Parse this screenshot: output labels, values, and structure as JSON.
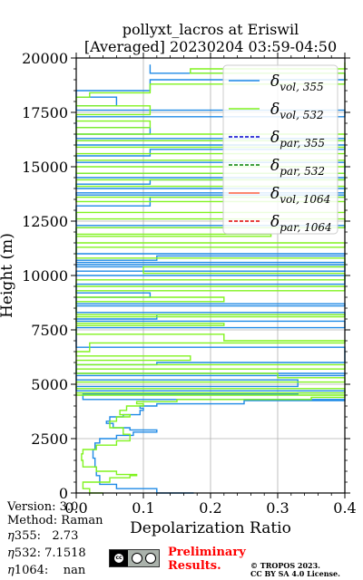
{
  "header": {
    "title_line1": "pollyxt_lacros at Eriswil",
    "title_line2": "[Averaged] 20230204 03:59-04:50"
  },
  "chart_data": {
    "type": "line",
    "title": "pollyxt_lacros at Eriswil\n[Averaged] 20230204 03:59-04:50",
    "xlabel": "Depolarization Ratio",
    "ylabel": "Height (m)",
    "xlim": [
      0.0,
      0.4
    ],
    "ylim": [
      0,
      20000
    ],
    "xticks": [
      "0.0",
      "0.1",
      "0.2",
      "0.3",
      "0.4"
    ],
    "yticks": [
      "0",
      "2500",
      "5000",
      "7500",
      "10000",
      "12500",
      "15000",
      "17500",
      "20000"
    ],
    "grid": true,
    "legend_position": "top-right",
    "series": [
      {
        "name": "δvol,355",
        "color": "#1f8ae6",
        "points": [
          [
            0.175,
            0
          ],
          [
            0.12,
            200
          ],
          [
            0.06,
            400
          ],
          [
            0.035,
            800
          ],
          [
            0.03,
            1200
          ],
          [
            0.028,
            1600
          ],
          [
            0.025,
            2000
          ],
          [
            0.028,
            2300
          ],
          [
            0.035,
            2500
          ],
          [
            0.06,
            2650
          ],
          [
            0.085,
            2800
          ],
          [
            0.12,
            2900
          ],
          [
            0.08,
            3000
          ],
          [
            0.055,
            3200
          ],
          [
            0.045,
            3300
          ],
          [
            0.05,
            3500
          ],
          [
            0.07,
            3600
          ],
          [
            0.095,
            3800
          ],
          [
            0.1,
            3900
          ],
          [
            0.095,
            4000
          ],
          [
            0.12,
            4100
          ],
          [
            0.25,
            4250
          ],
          [
            0.4,
            4300
          ],
          [
            0.01,
            4550
          ],
          [
            0.33,
            4600
          ],
          [
            0.4,
            4700
          ],
          [
            0.0,
            4900
          ],
          [
            0.33,
            5000
          ],
          [
            0.33,
            5200
          ],
          [
            0.0,
            5400
          ],
          [
            0.4,
            5500
          ],
          [
            0.0,
            5900
          ],
          [
            0.12,
            6000
          ],
          [
            0.4,
            6700
          ],
          [
            0.0,
            7600
          ],
          [
            0.4,
            7900
          ],
          [
            0.0,
            8000
          ],
          [
            0.12,
            8200
          ],
          [
            0.4,
            8300
          ],
          [
            0.0,
            8600
          ],
          [
            0.4,
            8700
          ],
          [
            0.0,
            9000
          ],
          [
            0.11,
            9200
          ],
          [
            0.0,
            9600
          ],
          [
            0.4,
            10000
          ],
          [
            0.0,
            10200
          ],
          [
            0.4,
            10400
          ],
          [
            0.0,
            10500
          ],
          [
            0.4,
            10600
          ],
          [
            0.0,
            10700
          ],
          [
            0.12,
            10900
          ],
          [
            0.4,
            11000
          ],
          [
            0.0,
            12200
          ],
          [
            0.4,
            12300
          ],
          [
            0.0,
            13200
          ],
          [
            0.11,
            13600
          ],
          [
            0.4,
            13700
          ],
          [
            0.0,
            13800
          ],
          [
            0.4,
            14000
          ],
          [
            0.0,
            14200
          ],
          [
            0.11,
            14400
          ],
          [
            0.4,
            14500
          ],
          [
            0.0,
            14700
          ],
          [
            0.4,
            15200
          ],
          [
            0.0,
            15500
          ],
          [
            0.11,
            15800
          ],
          [
            0.4,
            16000
          ],
          [
            0.0,
            16200
          ],
          [
            0.4,
            16300
          ],
          [
            0.0,
            16500
          ],
          [
            0.11,
            16800
          ],
          [
            0.0,
            17300
          ],
          [
            0.4,
            17600
          ],
          [
            0.0,
            17800
          ],
          [
            0.06,
            18200
          ],
          [
            0.0,
            18500
          ],
          [
            0.11,
            19000
          ],
          [
            0.4,
            19300
          ],
          [
            0.11,
            19700
          ]
        ]
      },
      {
        "name": "δvol,532",
        "color": "#80f31f",
        "points": [
          [
            0.04,
            0
          ],
          [
            0.02,
            200
          ],
          [
            0.01,
            500
          ],
          [
            0.05,
            700
          ],
          [
            0.08,
            800
          ],
          [
            0.09,
            850
          ],
          [
            0.06,
            1000
          ],
          [
            0.03,
            1200
          ],
          [
            0.01,
            1500
          ],
          [
            0.008,
            1800
          ],
          [
            0.01,
            2000
          ],
          [
            0.03,
            2200
          ],
          [
            0.06,
            2400
          ],
          [
            0.08,
            2700
          ],
          [
            0.07,
            3000
          ],
          [
            0.05,
            3300
          ],
          [
            0.06,
            3500
          ],
          [
            0.08,
            3600
          ],
          [
            0.065,
            3800
          ],
          [
            0.075,
            4000
          ],
          [
            0.1,
            4100
          ],
          [
            0.09,
            4200
          ],
          [
            0.15,
            4300
          ],
          [
            0.35,
            4400
          ],
          [
            0.4,
            4500
          ],
          [
            0.0,
            4600
          ],
          [
            0.4,
            4800
          ],
          [
            0.0,
            5100
          ],
          [
            0.4,
            5300
          ],
          [
            0.3,
            5500
          ],
          [
            0.0,
            5700
          ],
          [
            0.4,
            5900
          ],
          [
            0.0,
            6100
          ],
          [
            0.17,
            6300
          ],
          [
            0.0,
            6500
          ],
          [
            0.02,
            6900
          ],
          [
            0.4,
            7000
          ],
          [
            0.22,
            7300
          ],
          [
            0.0,
            7700
          ],
          [
            0.22,
            7800
          ],
          [
            0.0,
            8100
          ],
          [
            0.4,
            8200
          ],
          [
            0.0,
            8800
          ],
          [
            0.22,
            9000
          ],
          [
            0.0,
            9300
          ],
          [
            0.4,
            9500
          ],
          [
            0.0,
            9800
          ],
          [
            0.4,
            10100
          ],
          [
            0.1,
            10400
          ],
          [
            0.4,
            10800
          ],
          [
            0.0,
            11300
          ],
          [
            0.4,
            11500
          ],
          [
            0.0,
            11800
          ],
          [
            0.29,
            11900
          ],
          [
            0.0,
            12200
          ],
          [
            0.4,
            12600
          ],
          [
            0.0,
            12900
          ],
          [
            0.4,
            13400
          ],
          [
            0.0,
            13600
          ],
          [
            0.4,
            14100
          ],
          [
            0.0,
            14400
          ],
          [
            0.4,
            14700
          ],
          [
            0.0,
            15000
          ],
          [
            0.4,
            15300
          ],
          [
            0.0,
            15600
          ],
          [
            0.4,
            15900
          ],
          [
            0.0,
            16200
          ],
          [
            0.4,
            16500
          ],
          [
            0.0,
            16800
          ],
          [
            0.11,
            17100
          ],
          [
            0.0,
            17400
          ],
          [
            0.11,
            17800
          ],
          [
            0.0,
            18200
          ],
          [
            0.02,
            18400
          ],
          [
            0.11,
            18800
          ],
          [
            0.4,
            19300
          ],
          [
            0.17,
            19500
          ],
          [
            0.4,
            19800
          ]
        ]
      },
      {
        "name": "δpar,355",
        "color": "#0000cc",
        "style": "dashed",
        "points": []
      },
      {
        "name": "δpar,532",
        "color": "#008000",
        "style": "dashed",
        "points": []
      },
      {
        "name": "δvol,1064",
        "color": "#ff6040",
        "points": []
      },
      {
        "name": "δpar,1064",
        "color": "#e00000",
        "style": "dashed",
        "points": []
      }
    ],
    "legend": [
      {
        "base": "δ",
        "sub": "vol, 355",
        "color": "#1f8ae6",
        "style": "solid"
      },
      {
        "base": "δ",
        "sub": "vol, 532",
        "color": "#80f31f",
        "style": "solid"
      },
      {
        "base": "δ",
        "sub": "par, 355",
        "color": "#0000cc",
        "style": "dashed"
      },
      {
        "base": "δ",
        "sub": "par, 532",
        "color": "#008000",
        "style": "dashed"
      },
      {
        "base": "δ",
        "sub": "vol, 1064",
        "color": "#ff6040",
        "style": "solid"
      },
      {
        "base": "δ",
        "sub": "par, 1064",
        "color": "#e00000",
        "style": "dashed"
      }
    ]
  },
  "info": {
    "version": "Version: 3.0",
    "method": "Method: Raman",
    "eta355_label": "355:",
    "eta355_value": "2.73",
    "eta532_label": "532:",
    "eta532_value": "7.1518",
    "eta1064_label": "1064:",
    "eta1064_value": "nan",
    "eta_symbol": "η"
  },
  "license": {
    "badge_text": "cc",
    "badge_sub": "BY SA",
    "preliminary_line1": "Preliminary",
    "preliminary_line2": "Results.",
    "copyright_line1": "© TROPOS 2023.",
    "copyright_line2": "CC BY SA 4.0 License."
  }
}
